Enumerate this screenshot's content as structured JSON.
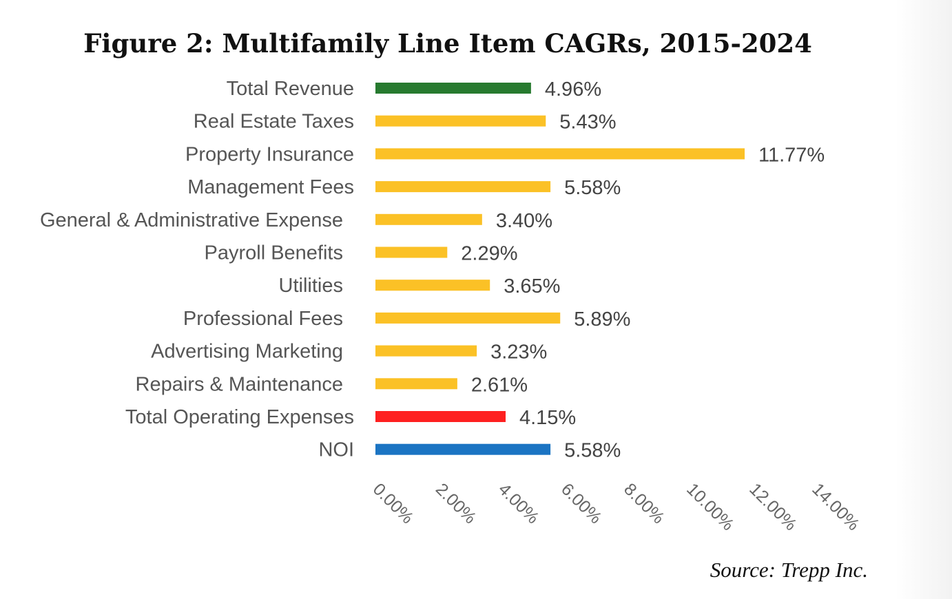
{
  "chart_data": {
    "type": "bar",
    "orientation": "horizontal",
    "title": "Figure 2: Multifamily Line Item CAGRs, 2015-2024",
    "categories": [
      "Total Revenue",
      "Real Estate Taxes",
      "Property Insurance",
      "Management Fees",
      "General & Administrative Expense",
      "Payroll Benefits",
      "Utilities",
      "Professional Fees",
      "Advertising Marketing",
      "Repairs & Maintenance",
      "Total Operating Expenses",
      "NOI"
    ],
    "values": [
      4.96,
      5.43,
      11.77,
      5.58,
      3.4,
      2.29,
      3.65,
      5.89,
      3.23,
      2.61,
      4.15,
      5.58
    ],
    "value_labels": [
      "4.96%",
      "5.43%",
      "11.77%",
      "5.58%",
      "3.40%",
      "2.29%",
      "3.65%",
      "5.89%",
      "3.23%",
      "2.61%",
      "4.15%",
      "5.58%"
    ],
    "colors": [
      "#277a2f",
      "#fbc126",
      "#fbc126",
      "#fbc126",
      "#fbc126",
      "#fbc126",
      "#fbc126",
      "#fbc126",
      "#fbc126",
      "#fbc126",
      "#fe2020",
      "#1b74c3"
    ],
    "xlim": [
      0,
      14
    ],
    "xticks": [
      0,
      2,
      4,
      6,
      8,
      10,
      12,
      14
    ],
    "xtick_labels": [
      "0.00%",
      "2.00%",
      "4.00%",
      "6.00%",
      "8.00%",
      "10.00%",
      "12.00%",
      "14.00%"
    ],
    "xlabel": "",
    "ylabel": "",
    "grid": false,
    "source": "Source: Trepp Inc."
  }
}
